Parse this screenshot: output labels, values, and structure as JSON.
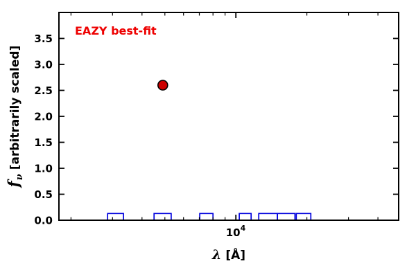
{
  "chart_data": {
    "type": "scatter",
    "title": "",
    "annotation": {
      "text": "EAZY best-fit",
      "color": "#ee0000"
    },
    "xlabel": {
      "math": "λ",
      "unit": "[Å]"
    },
    "ylabel": {
      "math_base": "f",
      "math_sub": "ν",
      "rest": "[arbitrarily scaled]"
    },
    "x_scale": "log",
    "x_log_range": [
      3.25,
      4.69
    ],
    "y_range": [
      0,
      4.0
    ],
    "y_major_ticks": [
      0.0,
      0.5,
      1.0,
      1.5,
      2.0,
      2.5,
      3.0,
      3.5
    ],
    "y_tick_labels": [
      "0.0",
      "0.5",
      "1.0",
      "1.5",
      "2.0",
      "2.5",
      "3.0",
      "3.5"
    ],
    "x_major_ticks": [
      10000
    ],
    "x_major_tick_label": {
      "base": "10",
      "exp": "4"
    },
    "x_minor_ticks": [
      2000,
      3000,
      4000,
      5000,
      6000,
      7000,
      8000,
      9000,
      20000,
      30000,
      40000
    ],
    "grid": false,
    "legend": "none",
    "series": [
      {
        "name": "best-fit-photometry-point",
        "marker": "circle",
        "color": "#cc0000",
        "edge_color": "#000000",
        "points": [
          {
            "x": 4900,
            "y": 2.6
          }
        ]
      }
    ],
    "filter_boxes": {
      "color": "#0000dd",
      "height": 0.13,
      "ranges": [
        [
          2860,
          3340
        ],
        [
          4500,
          5320
        ],
        [
          7030,
          8000
        ],
        [
          10340,
          11610
        ],
        [
          12500,
          15000
        ],
        [
          15000,
          17800
        ],
        [
          18030,
          20780
        ]
      ]
    },
    "axes": {
      "color": "#000000",
      "frame_width": 2
    }
  }
}
